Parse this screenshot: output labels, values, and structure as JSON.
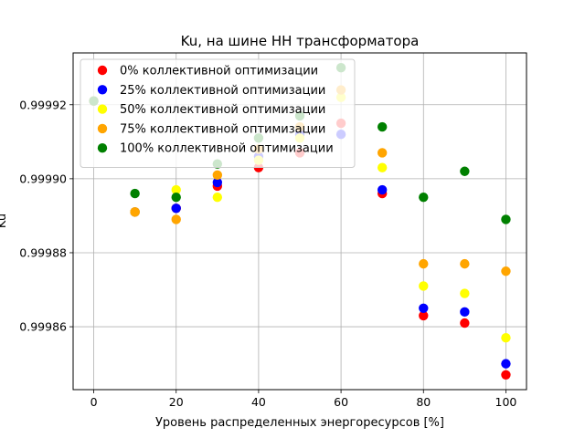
{
  "chart_data": {
    "type": "scatter",
    "title": "Ku, на шине НН трансформатора",
    "xlabel": "Уровень распределенных энергоресурсов [%]",
    "ylabel": "Ku",
    "xlim": [
      -5,
      105
    ],
    "ylim": [
      0.999843,
      0.999934
    ],
    "xticks": [
      "0",
      "20",
      "40",
      "60",
      "80",
      "100"
    ],
    "xtick_values": [
      0,
      20,
      40,
      60,
      80,
      100
    ],
    "yticks": [
      "0.99986",
      "0.99988",
      "0.99990",
      "0.99992"
    ],
    "ytick_values": [
      0.99986,
      0.99988,
      0.9999,
      0.99992
    ],
    "grid": true,
    "legend_position": "upper-left",
    "series": [
      {
        "name": "0% коллективной оптимизации",
        "color": "#ff0000",
        "x": [
          0,
          10,
          20,
          30,
          40,
          50,
          60,
          70,
          80,
          90,
          100
        ],
        "y": [
          0.999921,
          0.999891,
          0.999892,
          0.999898,
          0.999903,
          0.999907,
          0.999915,
          0.999896,
          0.999863,
          0.999861,
          0.999847
        ]
      },
      {
        "name": "25% коллективной оптимизации",
        "color": "#0000ff",
        "x": [
          0,
          10,
          20,
          30,
          40,
          50,
          60,
          70,
          80,
          90,
          100
        ],
        "y": [
          0.999921,
          0.999891,
          0.999892,
          0.999899,
          0.999906,
          0.999912,
          0.999912,
          0.999897,
          0.999865,
          0.999864,
          0.99985
        ]
      },
      {
        "name": "50% коллективной оптимизации",
        "color": "#ffff00",
        "x": [
          0,
          10,
          20,
          30,
          40,
          50,
          60,
          70,
          80,
          90,
          100
        ],
        "y": [
          0.999921,
          0.999891,
          0.999897,
          0.999895,
          0.999905,
          0.999911,
          0.999922,
          0.999903,
          0.999871,
          0.999869,
          0.999857
        ]
      },
      {
        "name": "75% коллективной оптимизации",
        "color": "#ffa500",
        "x": [
          0,
          10,
          20,
          30,
          40,
          50,
          60,
          70,
          80,
          90,
          100
        ],
        "y": [
          0.999921,
          0.999891,
          0.999889,
          0.999901,
          0.999908,
          0.999914,
          0.999924,
          0.999907,
          0.999877,
          0.999877,
          0.999875
        ]
      },
      {
        "name": "100% коллективной оптимизации",
        "color": "#008000",
        "x": [
          0,
          10,
          20,
          30,
          40,
          50,
          60,
          70,
          80,
          90,
          100
        ],
        "y": [
          0.999921,
          0.999896,
          0.999895,
          0.999904,
          0.999911,
          0.999917,
          0.99993,
          0.999914,
          0.999895,
          0.999902,
          0.999889
        ]
      }
    ]
  }
}
